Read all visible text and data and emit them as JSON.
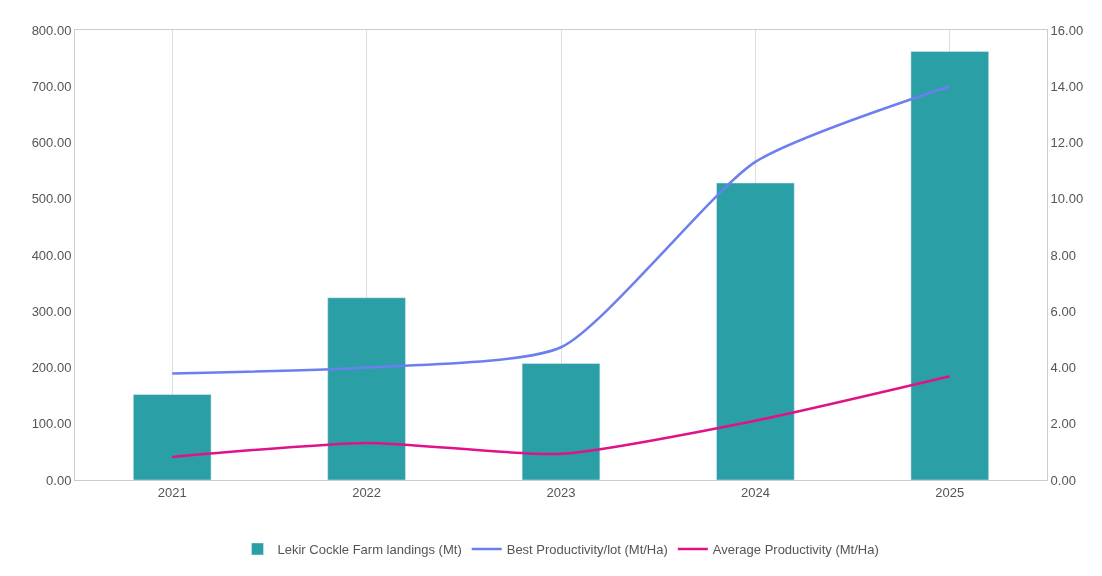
{
  "chart_data": {
    "type": "bar",
    "categories": [
      "2021",
      "2022",
      "2023",
      "2024",
      "2025"
    ],
    "series": [
      {
        "name": "Lekir Cockle Farm landings (Mt)",
        "color": "#2a9fa6",
        "values": [
          152,
          324,
          207,
          528,
          762
        ]
      },
      {
        "name": "Best Productivity/lot (Mt/Ha)",
        "type": "line",
        "axis": "y2",
        "color": "#6b7ff0",
        "values": [
          3.79,
          4.0,
          4.72,
          11.31,
          14.0
        ]
      },
      {
        "name": "Average Productivity (Mt/Ha)",
        "type": "line",
        "axis": "y2",
        "color": "#e0128a",
        "values": [
          0.82,
          1.32,
          0.93,
          2.11,
          3.69
        ]
      }
    ],
    "ylim": [
      0,
      800
    ],
    "yticks": [
      {
        "value": 0,
        "label": "0.00"
      },
      {
        "value": 100,
        "label": "100.00"
      },
      {
        "value": 200,
        "label": "200.00"
      },
      {
        "value": 300,
        "label": "300.00"
      },
      {
        "value": 400,
        "label": "400.00"
      },
      {
        "value": 500,
        "label": "500.00"
      },
      {
        "value": 600,
        "label": "600.00"
      },
      {
        "value": 700,
        "label": "700.00"
      },
      {
        "value": 800,
        "label": "800.00"
      }
    ],
    "y2lim": [
      0,
      16
    ],
    "y2ticks": [
      {
        "value": 0,
        "label": "0.00"
      },
      {
        "value": 2,
        "label": "2.00"
      },
      {
        "value": 4,
        "label": "4.00"
      },
      {
        "value": 6,
        "label": "6.00"
      },
      {
        "value": 8,
        "label": "8.00"
      },
      {
        "value": 10,
        "label": "10.00"
      },
      {
        "value": 12,
        "label": "12.00"
      },
      {
        "value": 14,
        "label": "14.00"
      },
      {
        "value": 16,
        "label": "16.00"
      }
    ],
    "grid": "x",
    "legend": "bottom",
    "marker": "none"
  }
}
